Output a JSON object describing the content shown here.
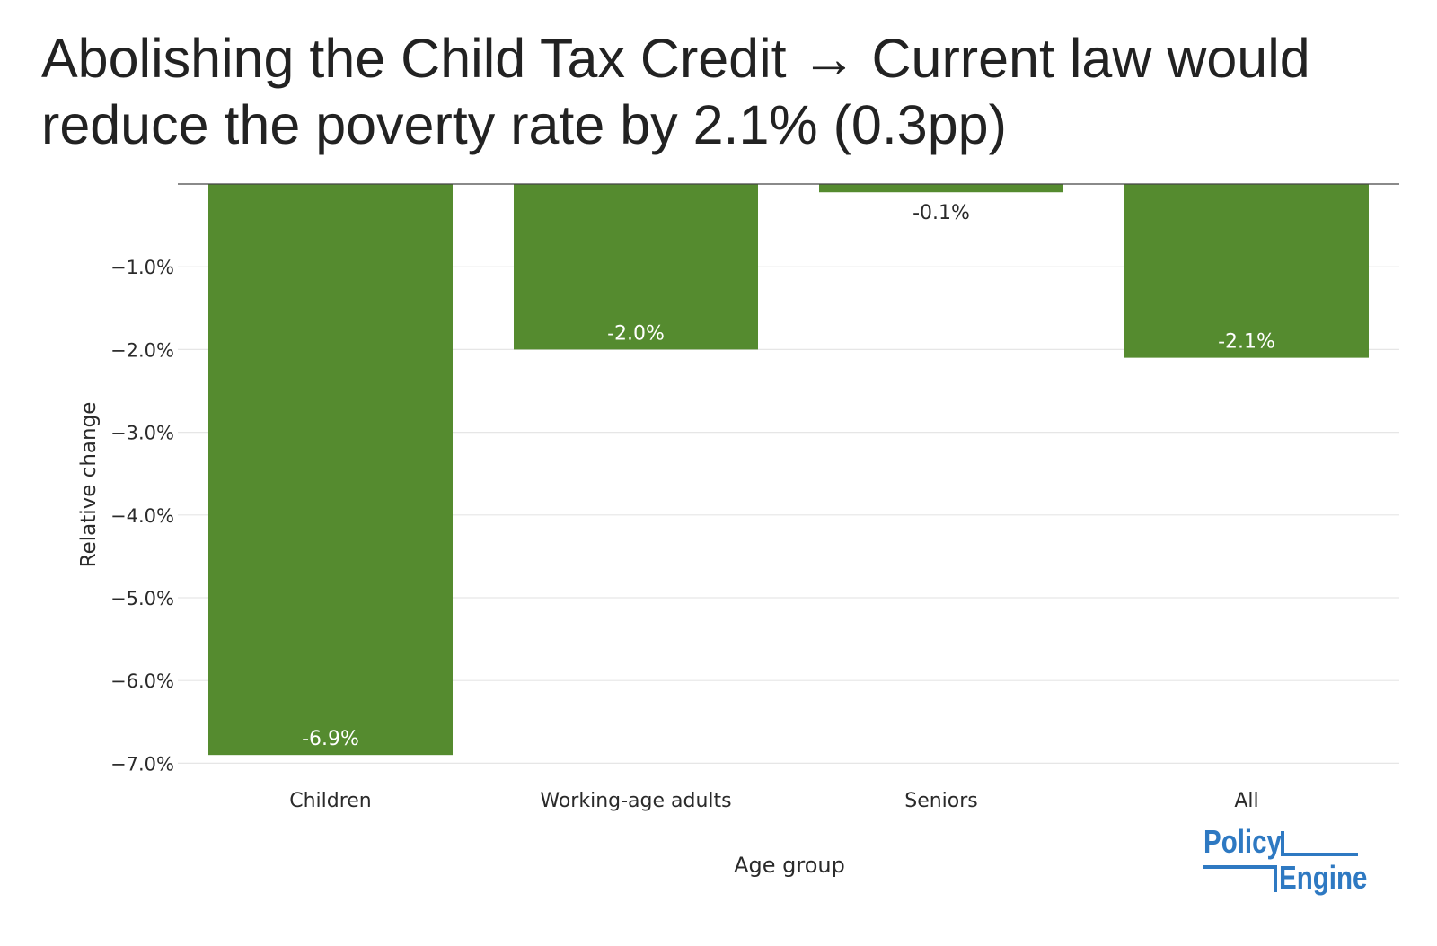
{
  "chart_data": {
    "type": "bar",
    "title_lines": [
      "Abolishing the Child Tax Credit → Current law would",
      "reduce the poverty rate by 2.1% (0.3pp)"
    ],
    "xlabel": "Age group",
    "ylabel": "Relative change",
    "categories": [
      "Children",
      "Working-age adults",
      "Seniors",
      "All"
    ],
    "values": [
      -6.9,
      -2.0,
      -0.1,
      -2.1
    ],
    "data_labels": [
      "-6.9%",
      "-2.0%",
      "-0.1%",
      "-2.1%"
    ],
    "ylim": [
      -7.2,
      0.1
    ],
    "yticks": [
      -1.0,
      -2.0,
      -3.0,
      -4.0,
      -5.0,
      -6.0,
      -7.0
    ],
    "ytick_labels": [
      "−1.0%",
      "−2.0%",
      "−3.0%",
      "−4.0%",
      "−5.0%",
      "−6.0%",
      "−7.0%"
    ],
    "grid": true,
    "colors": {
      "bar": "#558b2f",
      "grid": "#e6e6e6",
      "axis": "#444444",
      "text": "#2a2a2a"
    }
  },
  "logo": {
    "line1": "Policy",
    "line2": "Engine",
    "color": "#2e79c2"
  }
}
